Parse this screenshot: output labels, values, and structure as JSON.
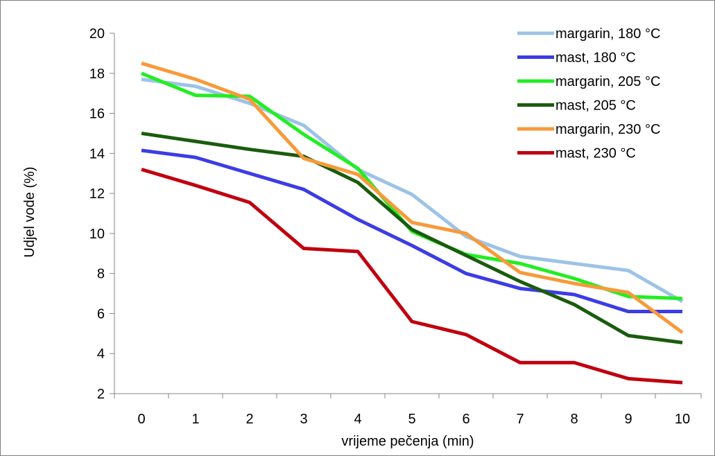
{
  "chart_data": {
    "type": "line",
    "title": "",
    "xlabel": "vrijeme pečenja (min)",
    "ylabel": "Udjel vode (%)",
    "x": [
      0,
      1,
      2,
      3,
      4,
      5,
      6,
      7,
      8,
      9,
      10
    ],
    "xlim": [
      0,
      10
    ],
    "ylim": [
      2,
      20
    ],
    "yticks": [
      2,
      4,
      6,
      8,
      10,
      12,
      14,
      16,
      18,
      20
    ],
    "grid": false,
    "legend_position": "top-right",
    "series": [
      {
        "name": "margarin, 180 °C",
        "color": "#9dc3e6",
        "values": [
          17.7,
          17.35,
          16.5,
          15.4,
          13.2,
          11.95,
          9.85,
          8.85,
          8.5,
          8.15,
          6.6
        ]
      },
      {
        "name": "mast, 180 °C",
        "color": "#3c3ce6",
        "values": [
          14.15,
          13.8,
          13.0,
          12.2,
          10.7,
          9.4,
          8.0,
          7.25,
          6.95,
          6.1,
          6.1
        ]
      },
      {
        "name": "margarin, 205 °C",
        "color": "#22ee22",
        "values": [
          18.0,
          16.9,
          16.85,
          14.95,
          13.25,
          10.1,
          8.95,
          8.5,
          7.75,
          6.85,
          6.75
        ]
      },
      {
        "name": "mast, 205 °C",
        "color": "#1a5c0e",
        "values": [
          15.0,
          14.6,
          14.2,
          13.85,
          12.55,
          10.2,
          8.9,
          7.6,
          6.45,
          4.9,
          4.55
        ]
      },
      {
        "name": "margarin, 230 °C",
        "color": "#f79a3a",
        "values": [
          18.5,
          17.7,
          16.7,
          13.75,
          12.95,
          10.55,
          10.0,
          8.05,
          7.5,
          7.05,
          5.05
        ]
      },
      {
        "name": "mast, 230 °C",
        "color": "#c0000f",
        "values": [
          13.2,
          12.4,
          11.55,
          9.25,
          9.1,
          5.6,
          4.95,
          3.55,
          3.55,
          2.75,
          2.55
        ]
      }
    ]
  }
}
